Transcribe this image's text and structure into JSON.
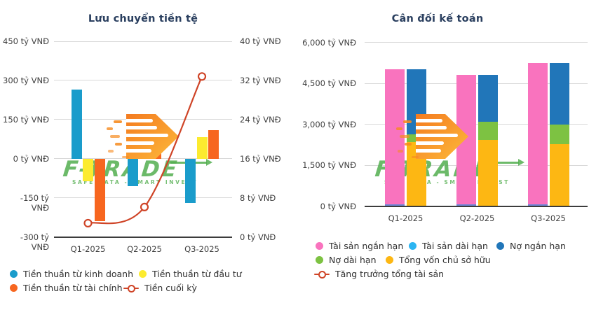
{
  "watermark": {
    "brand": "F-TRADE",
    "tagline": "SAFE DATA - SMART INVEST",
    "brand_color": "#52AE4F",
    "icon": "speed-arrow-icon",
    "icon_color": "#F68B1F"
  },
  "chart_data": [
    {
      "type": "bar",
      "subtype": "grouped bars with line on secondary axis",
      "title": "Lưu chuyển tiền tệ",
      "categories": [
        "Q1-2025",
        "Q2-2025",
        "Q3-2025"
      ],
      "series": [
        {
          "name": "Tiền thuần từ kinh doanh",
          "type": "bar",
          "axis": "left",
          "color": "#1A9CCB",
          "values": [
            265,
            -105,
            -171
          ]
        },
        {
          "name": "Tiền thuần từ đầu tư",
          "type": "bar",
          "axis": "left",
          "color": "#FCEB2F",
          "values": [
            -87,
            0,
            83
          ]
        },
        {
          "name": "Tiền thuần từ tài chính",
          "type": "bar",
          "axis": "left",
          "color": "#F7661F",
          "values": [
            -240,
            107,
            110
          ]
        },
        {
          "name": "Tiền cuối kỳ",
          "type": "line",
          "axis": "right",
          "color": "#CF4427",
          "values": [
            2.8,
            6.1,
            32.8
          ]
        }
      ],
      "left_axis": {
        "unit": "tỷ VNĐ",
        "min": -300,
        "max": 450,
        "tick_labels": [
          "450 tỷ VNĐ",
          "300 tỷ VNĐ",
          "150 tỷ VNĐ",
          "0 tỷ VNĐ",
          "-150 tỷ VNĐ",
          "-300 tỷ VNĐ"
        ],
        "tick_values": [
          450,
          300,
          150,
          0,
          -150,
          -300
        ]
      },
      "right_axis": {
        "unit": "tỷ VNĐ",
        "min": 0,
        "max": 40,
        "tick_labels": [
          "40 tỷ VNĐ",
          "32 tỷ VNĐ",
          "24 tỷ VNĐ",
          "16 tỷ VNĐ",
          "8 tỷ VNĐ",
          "0 tỷ VNĐ"
        ],
        "tick_values": [
          40,
          32,
          24,
          16,
          8,
          0
        ]
      },
      "grid": true,
      "legend_position": "bottom-left",
      "legend": [
        {
          "label": "Tiền thuần từ kinh doanh",
          "color": "#1A9CCB",
          "marker": "dot"
        },
        {
          "label": "Tiền thuần từ đầu tư",
          "color": "#FCEB2F",
          "marker": "dot"
        },
        {
          "label": "Tiền thuần từ tài chính",
          "color": "#F7661F",
          "marker": "dot"
        },
        {
          "label": "Tiền cuối kỳ",
          "color": "#CF4427",
          "marker": "line"
        }
      ]
    },
    {
      "type": "bar",
      "subtype": "two stacked bars per category (assets vs liabilities+equity)",
      "title": "Cân đối kế toán",
      "categories": [
        "Q1-2025",
        "Q2-2025",
        "Q3-2025"
      ],
      "stacks": [
        {
          "name": "assets",
          "series": [
            {
              "name": "Tài sản dài hạn",
              "legend_color": "#2CB5F2",
              "bar_color": "#6F86D8",
              "values": [
                60,
                55,
                55
              ]
            },
            {
              "name": "Tài sản ngắn hạn",
              "legend_color": "#F973BE",
              "bar_color": "#F973BE",
              "values": [
                4950,
                4760,
                5190
              ]
            }
          ]
        },
        {
          "name": "liabilities-equity",
          "series": [
            {
              "name": "Tổng vốn chủ sở hữu",
              "legend_color": "#FDB713",
              "bar_color": "#FDB713",
              "values": [
                2350,
                2420,
                2280
              ]
            },
            {
              "name": "Nợ dài hạn",
              "legend_color": "#7DC242",
              "bar_color": "#7DC242",
              "values": [
                285,
                670,
                700
              ]
            },
            {
              "name": "Nợ ngắn hạn",
              "legend_color": "#2176B9",
              "bar_color": "#2176B9",
              "values": [
                2375,
                1725,
                2265
              ]
            }
          ]
        }
      ],
      "left_axis": {
        "unit": "tỷ VNĐ",
        "min": 0,
        "max": 6000,
        "tick_labels": [
          "6,000 tỷ VNĐ",
          "4,500 tỷ VNĐ",
          "3,000 tỷ VNĐ",
          "1,500 tỷ VNĐ",
          "0 tỷ VNĐ"
        ],
        "tick_values": [
          6000,
          4500,
          3000,
          1500,
          0
        ]
      },
      "grid": true,
      "legend_position": "bottom-left",
      "legend": [
        {
          "label": "Tài sản ngắn hạn",
          "color": "#F973BE",
          "marker": "dot"
        },
        {
          "label": "Tài sản dài hạn",
          "color": "#2CB5F2",
          "marker": "dot"
        },
        {
          "label": "Nợ ngắn hạn",
          "color": "#2176B9",
          "marker": "dot"
        },
        {
          "label": "Nợ dài hạn",
          "color": "#7DC242",
          "marker": "dot"
        },
        {
          "label": "Tổng vốn chủ sở hữu",
          "color": "#FDB713",
          "marker": "dot"
        },
        {
          "label": "Tăng trưởng tổng tài sản",
          "color": "#CF4427",
          "marker": "line"
        }
      ]
    }
  ]
}
